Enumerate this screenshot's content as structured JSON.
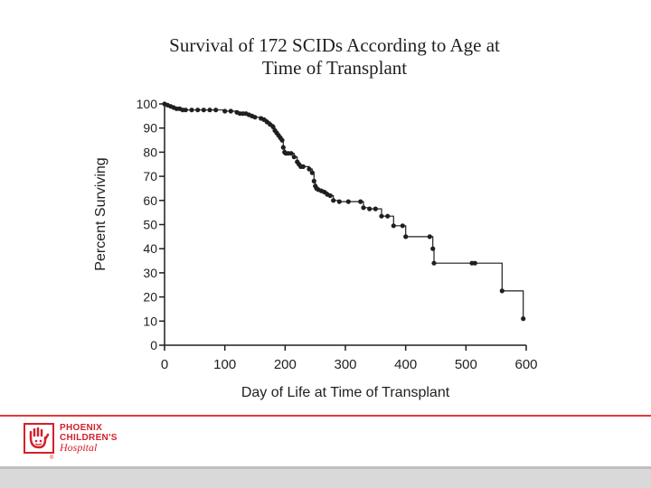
{
  "slide": {
    "title_line1": "Survival of 172 SCIDs According to Age at",
    "title_line2": "Time of Transplant"
  },
  "chart_data": {
    "type": "line",
    "title": "Survival of 172 SCIDs According to Age at Time of Transplant",
    "xlabel": "Day of Life at Time of Transplant",
    "ylabel": "Percent Surviving",
    "xlim": [
      0,
      600
    ],
    "ylim": [
      0,
      100
    ],
    "xticks": [
      0,
      100,
      200,
      300,
      400,
      500,
      600
    ],
    "yticks": [
      0,
      10,
      20,
      30,
      40,
      50,
      60,
      70,
      80,
      90,
      100
    ],
    "grid": false,
    "step": true,
    "series": [
      {
        "name": "Survival",
        "x": [
          0,
          5,
          10,
          15,
          20,
          25,
          30,
          35,
          45,
          55,
          65,
          75,
          85,
          100,
          110,
          120,
          125,
          130,
          135,
          140,
          145,
          150,
          160,
          165,
          170,
          175,
          180,
          183,
          186,
          189,
          192,
          195,
          197,
          199,
          201,
          205,
          210,
          215,
          220,
          223,
          226,
          230,
          240,
          245,
          248,
          250,
          252,
          255,
          260,
          265,
          270,
          275,
          280,
          290,
          305,
          325,
          330,
          340,
          350,
          360,
          370,
          380,
          395,
          400,
          440,
          445,
          447,
          510,
          515,
          560,
          595
        ],
        "y": [
          100,
          99.5,
          99,
          98.5,
          98,
          98,
          97.5,
          97.5,
          97.5,
          97.5,
          97.5,
          97.5,
          97.5,
          97,
          97,
          96.5,
          96,
          96,
          96,
          95.5,
          95,
          94.5,
          94,
          93.5,
          92.5,
          91.5,
          90.5,
          89,
          88,
          87,
          86,
          85,
          82,
          80,
          79.5,
          79.5,
          79.5,
          78,
          76,
          75,
          74,
          74,
          73,
          71.5,
          68,
          66,
          65,
          64.5,
          64,
          63.5,
          62.5,
          62,
          60,
          59.5,
          59.5,
          59.5,
          57,
          56.5,
          56.5,
          53.5,
          53.5,
          49.5,
          49.5,
          45,
          45,
          40,
          34,
          34,
          34,
          22.5,
          11
        ]
      }
    ]
  }
}
